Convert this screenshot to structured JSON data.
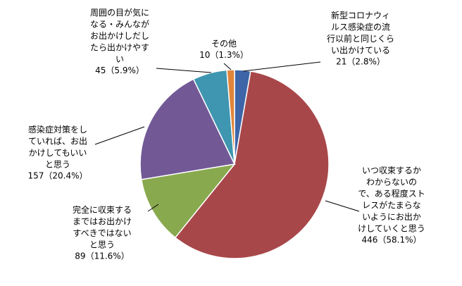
{
  "chart_data": {
    "type": "pie",
    "categories": [
      "新型コロナウィルス感染症の流行以前と同じくらい出かけている",
      "いつ収束するかわからないので、ある程度ストレスがたまらないようにお出かけしていくと思う",
      "完全に収束するまではお出かけすべきではないと思う",
      "感染症対策をしていれば、お出かけしてもいいと思う",
      "周囲の目が気になる・みんながお出かけしだしたら出かけやすい",
      "その他"
    ],
    "values": [
      21,
      446,
      89,
      157,
      45,
      10
    ],
    "value_labels": [
      "21（2.8%）",
      "446（58.1%）",
      "89（11.6%）",
      "157（20.4%）",
      "45（5.9%）",
      "10（1.3%）"
    ],
    "colors": [
      "#3d65a8",
      "#a8474a",
      "#89a94f",
      "#725996",
      "#3f96b0",
      "#e0853a"
    ]
  }
}
